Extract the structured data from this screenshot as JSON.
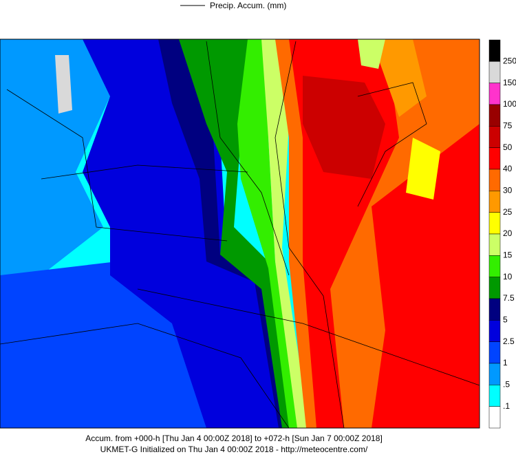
{
  "header": {
    "title": "Precip. Accum. (mm)"
  },
  "legend": {
    "labels": [
      "250",
      "150",
      "100",
      "75",
      "50",
      "40",
      "30",
      "25",
      "20",
      "15",
      "10",
      "7.5",
      "5",
      "2.5",
      "1",
      ".5",
      ".1"
    ],
    "colors": [
      "#000000",
      "#d9d9d9",
      "#ff33cc",
      "#990000",
      "#cc0000",
      "#ff0000",
      "#ff6a00",
      "#ff9900",
      "#ffff00",
      "#ccff66",
      "#33ee00",
      "#009900",
      "#000080",
      "#0000dd",
      "#0044ff",
      "#0099ff",
      "#00ffff",
      "#ffffff"
    ]
  },
  "footer": {
    "line1": "Accum. from +000-h [Thu Jan 4 00:00Z 2018] to +072-h [Sun Jan 7 00:00Z 2018]",
    "line2": "UKMET-G Initialized on Thu Jan 4 00:00Z 2018 - http://meteocentre.com/"
  }
}
